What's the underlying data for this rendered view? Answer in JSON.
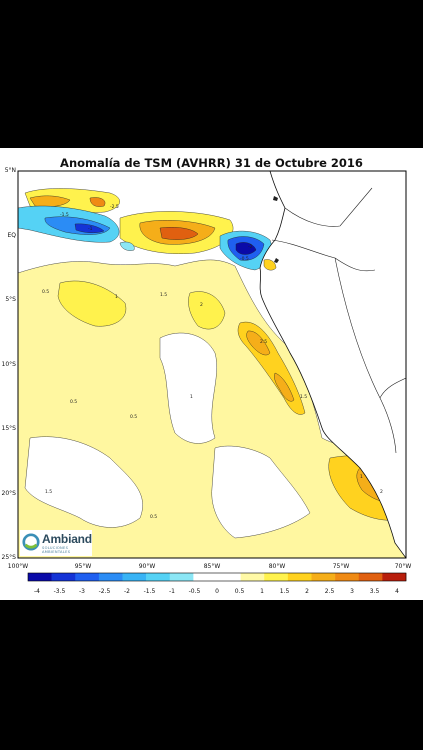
{
  "map": {
    "title": "Anomalía de TSM (AVHRR) 31 de Octubre 2016",
    "lat_labels": [
      "5°N",
      "EQ",
      "5°S",
      "10°S",
      "15°S",
      "20°S",
      "25°S"
    ],
    "lon_labels": [
      "100°W",
      "95°W",
      "90°W",
      "85°W",
      "80°W",
      "75°W",
      "70°W"
    ],
    "colorbar": {
      "levels": [
        "-4",
        "-3.5",
        "-3",
        "-2.5",
        "-2",
        "-1.5",
        "-1",
        "-0.5",
        "0",
        "0.5",
        "1",
        "1.5",
        "2",
        "2.5",
        "3",
        "3.5",
        "4"
      ],
      "colors": [
        "#0a0aa8",
        "#1433d6",
        "#1f5ff0",
        "#2b8cf5",
        "#38b3f5",
        "#55d2f5",
        "#8be6f5",
        "#ffffff",
        "#ffffff",
        "#fff9a6",
        "#fff24d",
        "#ffd21f",
        "#f5ae19",
        "#ef8a14",
        "#e06010",
        "#b81e0c"
      ]
    },
    "contour_labels": [
      "0.5",
      "1",
      "1.5",
      "2",
      "2.5",
      "-0.5",
      "-1",
      "-1.5",
      "-2",
      "-2.5",
      "0.5",
      "0.5",
      "1",
      "1.5",
      "1",
      "0.5",
      "1.5",
      "2"
    ]
  },
  "logo": {
    "name": "Ambiand",
    "tagline": "SOLUCIONES AMBIENTALES"
  }
}
